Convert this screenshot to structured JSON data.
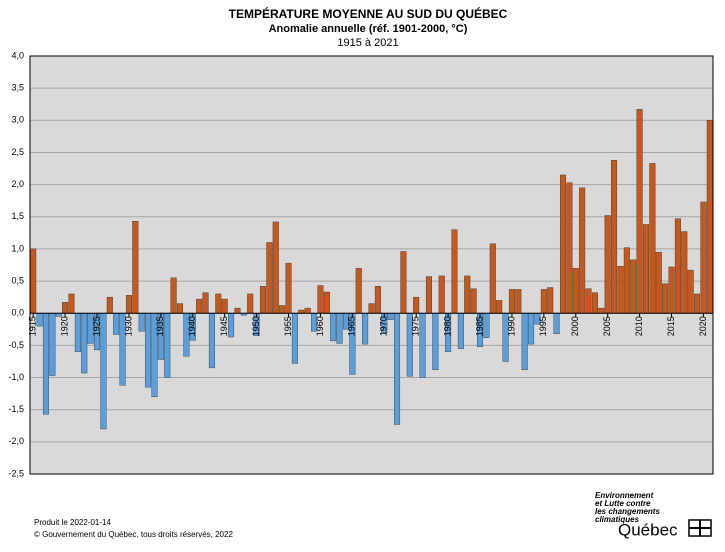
{
  "chart_data": {
    "type": "bar",
    "title": "TEMPÉRATURE MOYENNE AU SUD DU QUÉBEC",
    "subtitle": "Anomalie annuelle (réf. 1901-2000, °C)",
    "period": "1915 à 2021",
    "x": [
      1915,
      1916,
      1917,
      1918,
      1919,
      1920,
      1921,
      1922,
      1923,
      1924,
      1925,
      1926,
      1927,
      1928,
      1929,
      1930,
      1931,
      1932,
      1933,
      1934,
      1935,
      1936,
      1937,
      1938,
      1939,
      1940,
      1941,
      1942,
      1943,
      1944,
      1945,
      1946,
      1947,
      1948,
      1949,
      1950,
      1951,
      1952,
      1953,
      1954,
      1955,
      1956,
      1957,
      1958,
      1959,
      1960,
      1961,
      1962,
      1963,
      1964,
      1965,
      1966,
      1967,
      1968,
      1969,
      1970,
      1971,
      1972,
      1973,
      1974,
      1975,
      1976,
      1977,
      1978,
      1979,
      1980,
      1981,
      1982,
      1983,
      1984,
      1985,
      1986,
      1987,
      1988,
      1989,
      1990,
      1991,
      1992,
      1993,
      1994,
      1995,
      1996,
      1997,
      1998,
      1999,
      2000,
      2001,
      2002,
      2003,
      2004,
      2005,
      2006,
      2007,
      2008,
      2009,
      2010,
      2011,
      2012,
      2013,
      2014,
      2015,
      2016,
      2017,
      2018,
      2019,
      2020,
      2021
    ],
    "values": [
      1.0,
      -0.2,
      -1.57,
      -0.97,
      -0.05,
      0.17,
      0.3,
      -0.6,
      -0.93,
      -0.47,
      -0.57,
      -1.8,
      0.25,
      -0.33,
      -1.12,
      0.28,
      1.43,
      -0.28,
      -1.15,
      -1.3,
      -0.72,
      -1.0,
      0.55,
      0.15,
      -0.67,
      -0.42,
      0.22,
      0.32,
      -0.85,
      0.3,
      0.22,
      -0.37,
      0.08,
      -0.03,
      0.3,
      -0.35,
      0.42,
      1.1,
      1.42,
      0.12,
      0.78,
      -0.78,
      0.05,
      0.08,
      -0.28,
      0.43,
      0.33,
      -0.43,
      -0.47,
      -0.25,
      -0.95,
      0.7,
      -0.48,
      0.15,
      0.42,
      -0.3,
      -0.1,
      -1.73,
      0.96,
      -0.98,
      0.25,
      -1.0,
      0.57,
      -0.88,
      0.58,
      -0.6,
      1.3,
      -0.55,
      0.58,
      0.38,
      -0.52,
      -0.38,
      1.08,
      0.2,
      -0.75,
      0.37,
      0.37,
      -0.88,
      -0.48,
      -0.17,
      0.37,
      0.4,
      -0.32,
      2.15,
      2.03,
      0.7,
      1.95,
      0.38,
      0.32,
      0.08,
      1.52,
      2.38,
      0.73,
      1.02,
      0.83,
      3.17,
      1.38,
      2.33,
      0.95,
      0.46,
      0.72,
      1.47,
      1.27,
      0.67,
      0.3,
      1.73,
      3.0
    ],
    "positive_color": "#c5581c",
    "negative_color": "#5a9fdc",
    "xlim": [
      1914.5,
      2021.5
    ],
    "xticks": [
      1915,
      1920,
      1925,
      1930,
      1935,
      1940,
      1945,
      1950,
      1955,
      1960,
      1965,
      1970,
      1975,
      1980,
      1985,
      1990,
      1995,
      2000,
      2005,
      2010,
      2015,
      2020
    ],
    "ylim": [
      -2.5,
      4.0
    ],
    "yticks": [
      {
        "value": 4.0,
        "label": "4,0"
      },
      {
        "value": 3.5,
        "label": "3,5"
      },
      {
        "value": 3.0,
        "label": "3,0"
      },
      {
        "value": 2.5,
        "label": "2,5"
      },
      {
        "value": 2.0,
        "label": "2,0"
      },
      {
        "value": 1.5,
        "label": "1,5"
      },
      {
        "value": 1.0,
        "label": "1,0"
      },
      {
        "value": 0.5,
        "label": "0,5"
      },
      {
        "value": 0.0,
        "label": "0,0"
      },
      {
        "value": -0.5,
        "label": "-0,5"
      },
      {
        "value": -1.0,
        "label": "-1,0"
      },
      {
        "value": -1.5,
        "label": "-1,5"
      },
      {
        "value": -2.0,
        "label": "-2,0"
      },
      {
        "value": -2.5,
        "label": "-2,5"
      }
    ],
    "grid": true
  },
  "footer": {
    "produced": "Produit le 2022-01-14",
    "copyright": "© Gouvernement du Québec, tous droits réservés, 2022"
  },
  "logo": {
    "lines": [
      "Environnement",
      "et Lutte contre",
      "les changements",
      "climatiques"
    ],
    "name": "Québec"
  }
}
